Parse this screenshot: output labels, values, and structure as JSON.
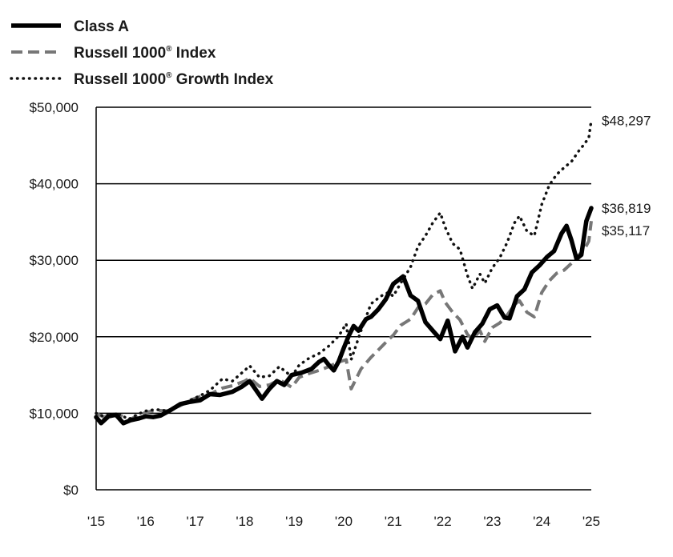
{
  "chart_data": {
    "type": "line",
    "title": "",
    "xlabel": "",
    "ylabel": "",
    "ylim": [
      0,
      50000
    ],
    "xlim": [
      2015,
      2025
    ],
    "grid": true,
    "legend_position": "top-left",
    "y_ticks": [
      0,
      10000,
      20000,
      30000,
      40000,
      50000
    ],
    "y_tick_labels": [
      "$0",
      "$10,000",
      "$20,000",
      "$30,000",
      "$40,000",
      "$50,000"
    ],
    "x_ticks": [
      2015,
      2016,
      2017,
      2018,
      2019,
      2020,
      2021,
      2022,
      2023,
      2024,
      2025
    ],
    "x_tick_labels": [
      "'15",
      "'16",
      "'17",
      "'18",
      "'19",
      "'20",
      "'21",
      "'22",
      "'23",
      "'24",
      "'25"
    ],
    "series": [
      {
        "name": "Russell 1000",
        "name_suffix": " Index",
        "superscript": "®",
        "style": "dashed",
        "color": "#777777",
        "end_label": "$35,117",
        "points": [
          [
            2015.0,
            10000
          ],
          [
            2015.15,
            9500
          ],
          [
            2015.3,
            9800
          ],
          [
            2015.5,
            9700
          ],
          [
            2015.65,
            9100
          ],
          [
            2015.85,
            9700
          ],
          [
            2016.0,
            10100
          ],
          [
            2016.2,
            10400
          ],
          [
            2016.45,
            10300
          ],
          [
            2016.7,
            11000
          ],
          [
            2016.9,
            11700
          ],
          [
            2017.1,
            12200
          ],
          [
            2017.3,
            12500
          ],
          [
            2017.55,
            13300
          ],
          [
            2017.75,
            13600
          ],
          [
            2018.0,
            14200
          ],
          [
            2018.1,
            14600
          ],
          [
            2018.3,
            13500
          ],
          [
            2018.5,
            13700
          ],
          [
            2018.7,
            14400
          ],
          [
            2018.95,
            13400
          ],
          [
            2019.1,
            14700
          ],
          [
            2019.3,
            15200
          ],
          [
            2019.5,
            15600
          ],
          [
            2019.7,
            16100
          ],
          [
            2019.9,
            16700
          ],
          [
            2020.05,
            17000
          ],
          [
            2020.15,
            13200
          ],
          [
            2020.35,
            15800
          ],
          [
            2020.55,
            17300
          ],
          [
            2020.75,
            18600
          ],
          [
            2020.9,
            19600
          ],
          [
            2021.0,
            20200
          ],
          [
            2021.15,
            21500
          ],
          [
            2021.35,
            22300
          ],
          [
            2021.5,
            23800
          ],
          [
            2021.65,
            24300
          ],
          [
            2021.8,
            25500
          ],
          [
            2021.95,
            26000
          ],
          [
            2022.05,
            24500
          ],
          [
            2022.2,
            23200
          ],
          [
            2022.35,
            22200
          ],
          [
            2022.5,
            20300
          ],
          [
            2022.6,
            19700
          ],
          [
            2022.75,
            20800
          ],
          [
            2022.85,
            19400
          ],
          [
            2023.0,
            21200
          ],
          [
            2023.15,
            21800
          ],
          [
            2023.3,
            22800
          ],
          [
            2023.45,
            24200
          ],
          [
            2023.55,
            24700
          ],
          [
            2023.7,
            23200
          ],
          [
            2023.85,
            22600
          ],
          [
            2024.0,
            25800
          ],
          [
            2024.15,
            27300
          ],
          [
            2024.3,
            28300
          ],
          [
            2024.45,
            28700
          ],
          [
            2024.6,
            29600
          ],
          [
            2024.75,
            30700
          ],
          [
            2024.85,
            31300
          ],
          [
            2024.95,
            32500
          ],
          [
            2025.0,
            35117
          ]
        ]
      },
      {
        "name": "Russell 1000",
        "name_suffix": " Growth Index",
        "superscript": "®",
        "style": "dotted",
        "color": "#111111",
        "end_label": "$48,297",
        "points": [
          [
            2015.0,
            10000
          ],
          [
            2015.15,
            9600
          ],
          [
            2015.3,
            9900
          ],
          [
            2015.5,
            9800
          ],
          [
            2015.65,
            9200
          ],
          [
            2015.85,
            9900
          ],
          [
            2016.0,
            10300
          ],
          [
            2016.2,
            10500
          ],
          [
            2016.45,
            10300
          ],
          [
            2016.7,
            11100
          ],
          [
            2016.9,
            11700
          ],
          [
            2017.1,
            12300
          ],
          [
            2017.3,
            13000
          ],
          [
            2017.55,
            14500
          ],
          [
            2017.75,
            14200
          ],
          [
            2018.0,
            15600
          ],
          [
            2018.1,
            16200
          ],
          [
            2018.3,
            14700
          ],
          [
            2018.5,
            14900
          ],
          [
            2018.7,
            16100
          ],
          [
            2018.95,
            14800
          ],
          [
            2019.1,
            16300
          ],
          [
            2019.3,
            17200
          ],
          [
            2019.5,
            17800
          ],
          [
            2019.7,
            18800
          ],
          [
            2019.9,
            20100
          ],
          [
            2020.05,
            21700
          ],
          [
            2020.15,
            17000
          ],
          [
            2020.35,
            20800
          ],
          [
            2020.55,
            24300
          ],
          [
            2020.75,
            25300
          ],
          [
            2020.9,
            25800
          ],
          [
            2021.0,
            25300
          ],
          [
            2021.15,
            27000
          ],
          [
            2021.35,
            29100
          ],
          [
            2021.5,
            31800
          ],
          [
            2021.65,
            33200
          ],
          [
            2021.8,
            34900
          ],
          [
            2021.95,
            36200
          ],
          [
            2022.05,
            34300
          ],
          [
            2022.2,
            32200
          ],
          [
            2022.35,
            31400
          ],
          [
            2022.5,
            28000
          ],
          [
            2022.6,
            26300
          ],
          [
            2022.75,
            28200
          ],
          [
            2022.85,
            27000
          ],
          [
            2023.0,
            29000
          ],
          [
            2023.15,
            30300
          ],
          [
            2023.3,
            32300
          ],
          [
            2023.45,
            34900
          ],
          [
            2023.55,
            35800
          ],
          [
            2023.7,
            33800
          ],
          [
            2023.85,
            33200
          ],
          [
            2024.0,
            37300
          ],
          [
            2024.15,
            39800
          ],
          [
            2024.3,
            41200
          ],
          [
            2024.45,
            42100
          ],
          [
            2024.6,
            42900
          ],
          [
            2024.75,
            44300
          ],
          [
            2024.85,
            45100
          ],
          [
            2024.95,
            46000
          ],
          [
            2025.0,
            48297
          ]
        ]
      },
      {
        "name": "Class A",
        "name_suffix": "",
        "superscript": "",
        "style": "solid",
        "color": "#000000",
        "end_label": "$36,819",
        "points": [
          [
            2015.0,
            9500
          ],
          [
            2015.1,
            8700
          ],
          [
            2015.25,
            9600
          ],
          [
            2015.4,
            9800
          ],
          [
            2015.55,
            8700
          ],
          [
            2015.7,
            9100
          ],
          [
            2015.85,
            9300
          ],
          [
            2016.0,
            9600
          ],
          [
            2016.15,
            9500
          ],
          [
            2016.3,
            9700
          ],
          [
            2016.5,
            10400
          ],
          [
            2016.7,
            11200
          ],
          [
            2016.9,
            11500
          ],
          [
            2017.1,
            11700
          ],
          [
            2017.3,
            12500
          ],
          [
            2017.5,
            12400
          ],
          [
            2017.75,
            12800
          ],
          [
            2017.95,
            13500
          ],
          [
            2018.1,
            14200
          ],
          [
            2018.2,
            13300
          ],
          [
            2018.35,
            11900
          ],
          [
            2018.5,
            13200
          ],
          [
            2018.65,
            14200
          ],
          [
            2018.8,
            13700
          ],
          [
            2018.95,
            15000
          ],
          [
            2019.15,
            15300
          ],
          [
            2019.35,
            15800
          ],
          [
            2019.5,
            16700
          ],
          [
            2019.6,
            17100
          ],
          [
            2019.7,
            16300
          ],
          [
            2019.8,
            15600
          ],
          [
            2019.9,
            16800
          ],
          [
            2020.0,
            18500
          ],
          [
            2020.1,
            20100
          ],
          [
            2020.2,
            21400
          ],
          [
            2020.3,
            20800
          ],
          [
            2020.45,
            22300
          ],
          [
            2020.55,
            22600
          ],
          [
            2020.7,
            23600
          ],
          [
            2020.85,
            24900
          ],
          [
            2021.0,
            26900
          ],
          [
            2021.2,
            27900
          ],
          [
            2021.35,
            25400
          ],
          [
            2021.5,
            24700
          ],
          [
            2021.65,
            21900
          ],
          [
            2021.8,
            20800
          ],
          [
            2021.95,
            19700
          ],
          [
            2022.1,
            22100
          ],
          [
            2022.25,
            18100
          ],
          [
            2022.4,
            20000
          ],
          [
            2022.5,
            18600
          ],
          [
            2022.65,
            20600
          ],
          [
            2022.8,
            21700
          ],
          [
            2022.95,
            23600
          ],
          [
            2023.1,
            24100
          ],
          [
            2023.25,
            22500
          ],
          [
            2023.35,
            22400
          ],
          [
            2023.5,
            25300
          ],
          [
            2023.65,
            26200
          ],
          [
            2023.8,
            28400
          ],
          [
            2023.95,
            29300
          ],
          [
            2024.1,
            30400
          ],
          [
            2024.25,
            31200
          ],
          [
            2024.4,
            33500
          ],
          [
            2024.5,
            34500
          ],
          [
            2024.6,
            32600
          ],
          [
            2024.7,
            30200
          ],
          [
            2024.8,
            30700
          ],
          [
            2024.9,
            35100
          ],
          [
            2025.0,
            36819
          ]
        ]
      }
    ]
  }
}
